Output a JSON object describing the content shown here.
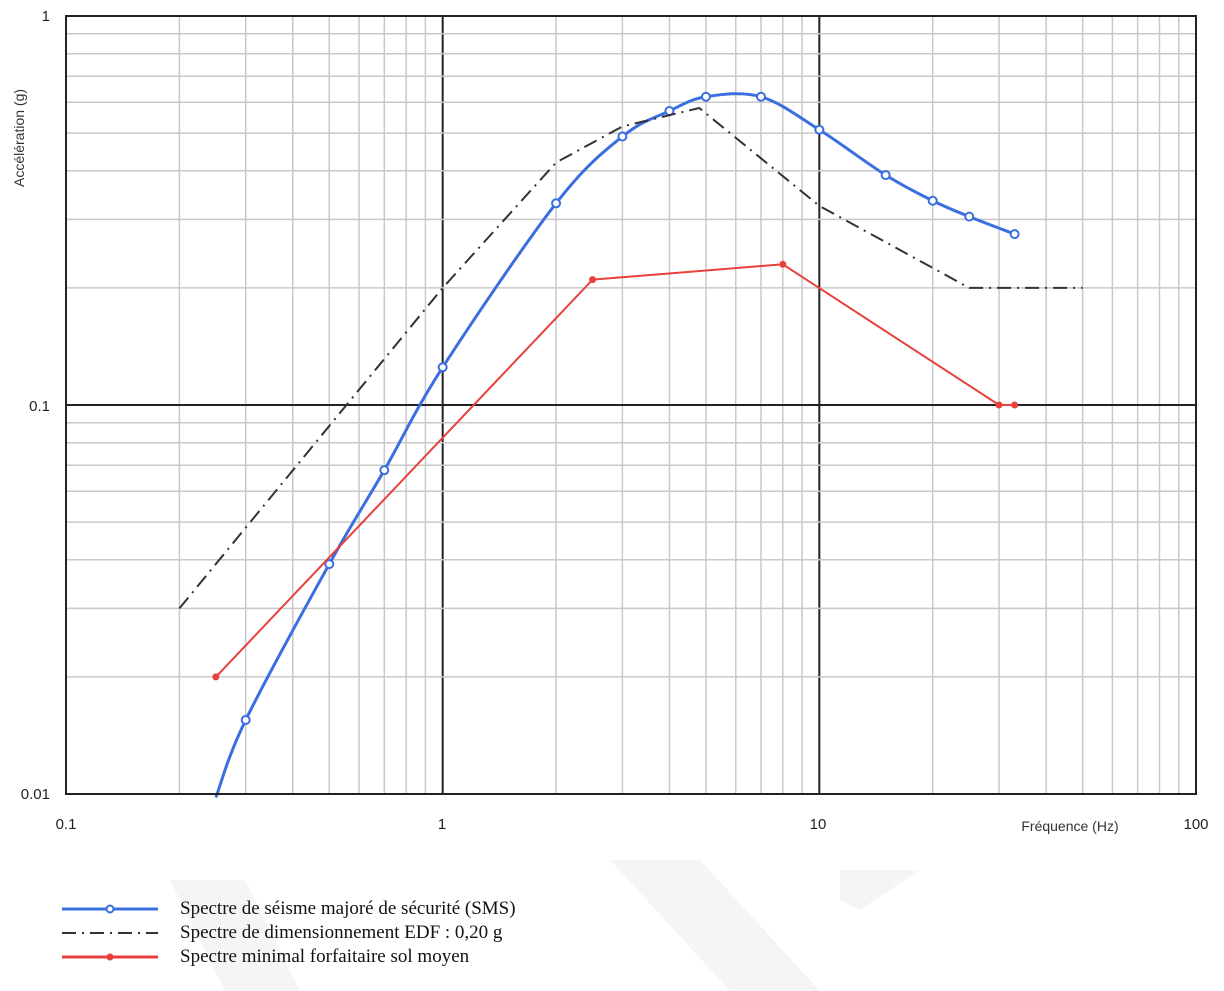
{
  "chart_data": {
    "type": "line",
    "x_scale": "log",
    "y_scale": "log",
    "xlim": [
      0.1,
      100
    ],
    "ylim": [
      0.01,
      1
    ],
    "xlabel": "Fréquence (Hz)",
    "ylabel": "Accélération (g)",
    "x_ticks": [
      "0.1",
      "1",
      "10",
      "100"
    ],
    "y_ticks": [
      "0.01",
      "0.1",
      "1"
    ],
    "grid": true,
    "legend_position": "bottom-left",
    "series": [
      {
        "name": "Spectre de séisme majoré de sécurité (SMS)",
        "color": "#3b6fe0",
        "style": "solid-open-circle",
        "smooth": true,
        "points": [
          [
            0.25,
            0.0098
          ],
          [
            0.3,
            0.0155
          ],
          [
            0.5,
            0.039
          ],
          [
            0.7,
            0.068
          ],
          [
            1.0,
            0.125
          ],
          [
            2.0,
            0.33
          ],
          [
            3.0,
            0.49
          ],
          [
            4.0,
            0.57
          ],
          [
            5.0,
            0.62
          ],
          [
            7.0,
            0.62
          ],
          [
            10.0,
            0.51
          ],
          [
            15.0,
            0.39
          ],
          [
            20.0,
            0.335
          ],
          [
            25.0,
            0.305
          ],
          [
            33.0,
            0.275
          ]
        ]
      },
      {
        "name": "Spectre de dimensionnement EDF : 0,20 g",
        "color": "#333333",
        "style": "dash-dot",
        "smooth": false,
        "points": [
          [
            0.2,
            0.03
          ],
          [
            1.0,
            0.2
          ],
          [
            2.0,
            0.42
          ],
          [
            3.0,
            0.52
          ],
          [
            4.8,
            0.58
          ],
          [
            10.0,
            0.325
          ],
          [
            25.0,
            0.2
          ],
          [
            50.0,
            0.2
          ]
        ]
      },
      {
        "name": "Spectre minimal forfaitaire sol moyen",
        "color": "#e8403c",
        "style": "solid-filled-dot",
        "smooth": false,
        "points": [
          [
            0.25,
            0.02
          ],
          [
            2.5,
            0.21
          ],
          [
            8.0,
            0.23
          ],
          [
            30.0,
            0.1
          ],
          [
            33.0,
            0.1
          ]
        ]
      }
    ]
  },
  "legend": [
    {
      "label": "Spectre de séisme majoré de sécurité (SMS)",
      "icon": "blue-line-open-circle"
    },
    {
      "label": "Spectre de dimensionnement EDF : 0,20 g",
      "icon": "black-dash-dot-line"
    },
    {
      "label": "Spectre minimal forfaitaire sol moyen",
      "icon": "red-line-dot"
    }
  ]
}
